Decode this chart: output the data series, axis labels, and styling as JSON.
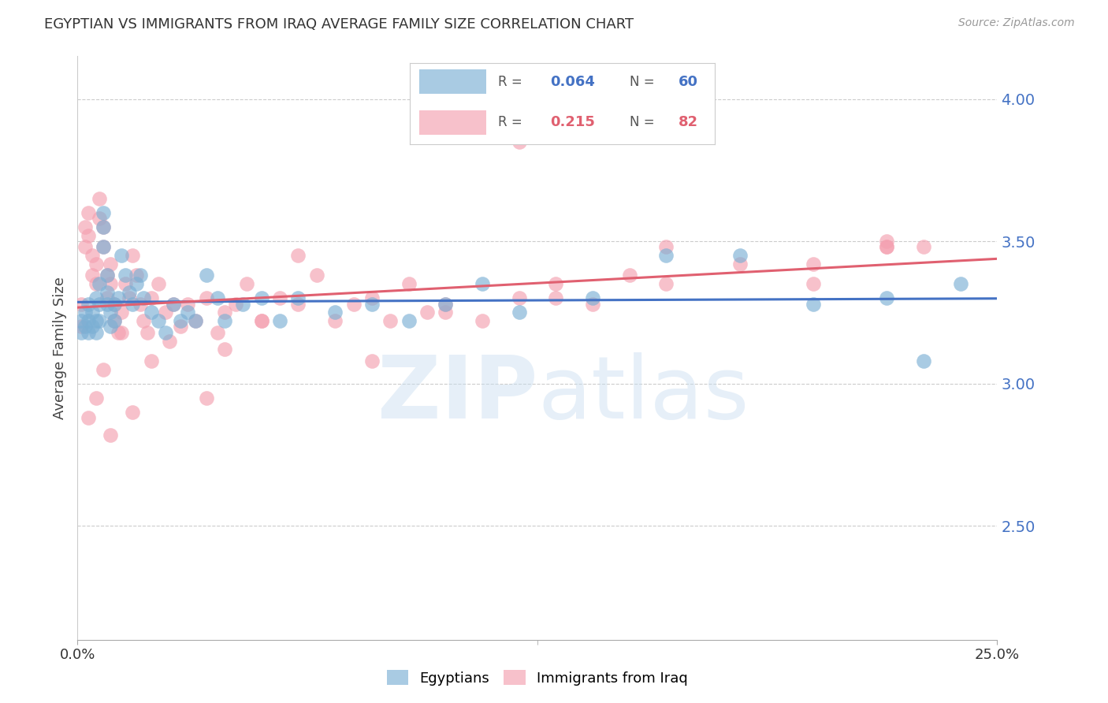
{
  "title": "EGYPTIAN VS IMMIGRANTS FROM IRAQ AVERAGE FAMILY SIZE CORRELATION CHART",
  "source": "Source: ZipAtlas.com",
  "ylabel": "Average Family Size",
  "right_yticks": [
    2.5,
    3.0,
    3.5,
    4.0
  ],
  "background_color": "#ffffff",
  "watermark": "ZIPatlas",
  "blue_R": "0.064",
  "blue_N": "60",
  "pink_R": "0.215",
  "pink_N": "82",
  "blue_color": "#7bafd4",
  "pink_color": "#f4a0b0",
  "blue_line_color": "#4472c4",
  "pink_line_color": "#e06070",
  "xlim": [
    0.0,
    0.25
  ],
  "ylim": [
    2.1,
    4.15
  ],
  "xticks": [
    0.0,
    0.25
  ],
  "xtick_labels": [
    "0.0%",
    "25.0%"
  ],
  "blue_scatter_x": [
    0.001,
    0.001,
    0.002,
    0.002,
    0.003,
    0.003,
    0.003,
    0.004,
    0.004,
    0.005,
    0.005,
    0.005,
    0.006,
    0.006,
    0.006,
    0.007,
    0.007,
    0.007,
    0.008,
    0.008,
    0.008,
    0.009,
    0.009,
    0.01,
    0.01,
    0.011,
    0.012,
    0.013,
    0.014,
    0.015,
    0.016,
    0.017,
    0.018,
    0.02,
    0.022,
    0.024,
    0.026,
    0.028,
    0.03,
    0.032,
    0.035,
    0.038,
    0.04,
    0.045,
    0.05,
    0.055,
    0.06,
    0.07,
    0.08,
    0.09,
    0.1,
    0.11,
    0.12,
    0.14,
    0.16,
    0.18,
    0.2,
    0.22,
    0.23,
    0.24
  ],
  "blue_scatter_y": [
    3.22,
    3.18,
    3.25,
    3.2,
    3.28,
    3.22,
    3.18,
    3.25,
    3.2,
    3.3,
    3.22,
    3.18,
    3.35,
    3.28,
    3.22,
    3.6,
    3.55,
    3.48,
    3.38,
    3.32,
    3.28,
    3.25,
    3.2,
    3.28,
    3.22,
    3.3,
    3.45,
    3.38,
    3.32,
    3.28,
    3.35,
    3.38,
    3.3,
    3.25,
    3.22,
    3.18,
    3.28,
    3.22,
    3.25,
    3.22,
    3.38,
    3.3,
    3.22,
    3.28,
    3.3,
    3.22,
    3.3,
    3.25,
    3.28,
    3.22,
    3.28,
    3.35,
    3.25,
    3.3,
    3.45,
    3.45,
    3.28,
    3.3,
    3.08,
    3.35
  ],
  "pink_scatter_x": [
    0.001,
    0.001,
    0.002,
    0.002,
    0.003,
    0.003,
    0.004,
    0.004,
    0.005,
    0.005,
    0.006,
    0.006,
    0.007,
    0.007,
    0.008,
    0.008,
    0.009,
    0.009,
    0.01,
    0.01,
    0.011,
    0.012,
    0.013,
    0.014,
    0.015,
    0.016,
    0.017,
    0.018,
    0.019,
    0.02,
    0.022,
    0.024,
    0.026,
    0.028,
    0.03,
    0.032,
    0.035,
    0.038,
    0.04,
    0.043,
    0.046,
    0.05,
    0.055,
    0.06,
    0.065,
    0.07,
    0.075,
    0.08,
    0.085,
    0.09,
    0.095,
    0.1,
    0.11,
    0.12,
    0.13,
    0.14,
    0.15,
    0.16,
    0.18,
    0.2,
    0.22,
    0.23,
    0.003,
    0.005,
    0.007,
    0.009,
    0.012,
    0.015,
    0.02,
    0.025,
    0.035,
    0.04,
    0.05,
    0.06,
    0.08,
    0.1,
    0.13,
    0.16,
    0.2,
    0.22,
    0.12,
    0.22
  ],
  "pink_scatter_y": [
    3.28,
    3.2,
    3.55,
    3.48,
    3.6,
    3.52,
    3.45,
    3.38,
    3.42,
    3.35,
    3.65,
    3.58,
    3.55,
    3.48,
    3.38,
    3.3,
    3.42,
    3.35,
    3.28,
    3.22,
    3.18,
    3.25,
    3.35,
    3.3,
    3.45,
    3.38,
    3.28,
    3.22,
    3.18,
    3.3,
    3.35,
    3.25,
    3.28,
    3.2,
    3.28,
    3.22,
    3.3,
    3.18,
    3.25,
    3.28,
    3.35,
    3.22,
    3.3,
    3.45,
    3.38,
    3.22,
    3.28,
    3.3,
    3.22,
    3.35,
    3.25,
    3.28,
    3.22,
    3.3,
    3.35,
    3.28,
    3.38,
    3.48,
    3.42,
    3.35,
    3.48,
    3.48,
    2.88,
    2.95,
    3.05,
    2.82,
    3.18,
    2.9,
    3.08,
    3.15,
    2.95,
    3.12,
    3.22,
    3.28,
    3.08,
    3.25,
    3.3,
    3.35,
    3.42,
    3.48,
    3.85,
    3.5
  ]
}
